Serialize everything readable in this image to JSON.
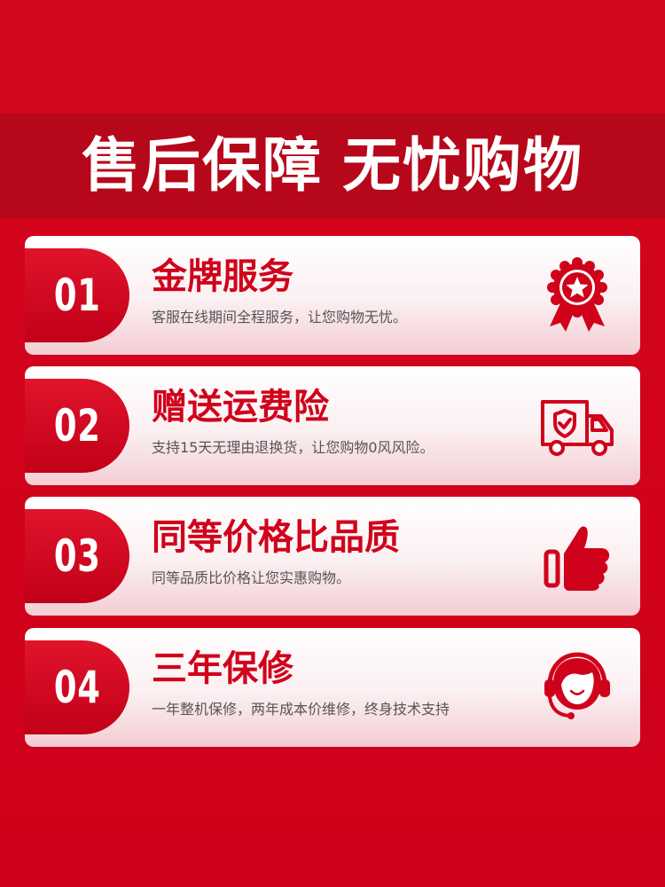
{
  "header": {
    "title_part1": "售后保障",
    "title_part2": "无忧购物"
  },
  "colors": {
    "background": "#d0021b",
    "title_band": "#b7071a",
    "accent": "#d0021b",
    "card_text": "#555555"
  },
  "cards": [
    {
      "number": "01",
      "title": "金牌服务",
      "subtitle": "客服在线期间全程服务，让您购物无忧。",
      "icon": "medal-star-icon"
    },
    {
      "number": "02",
      "title": "赠送运费险",
      "subtitle": "支持15天无理由退换货，让您购物0风风险。",
      "icon": "delivery-truck-shield-icon"
    },
    {
      "number": "03",
      "title": "同等价格比品质",
      "subtitle": "同等品质比价格让您实惠购物。",
      "icon": "thumbs-up-icon"
    },
    {
      "number": "04",
      "title": "三年保修",
      "subtitle": "一年整机保修，两年成本价维修，终身技术支持",
      "icon": "customer-service-headset-icon"
    }
  ]
}
